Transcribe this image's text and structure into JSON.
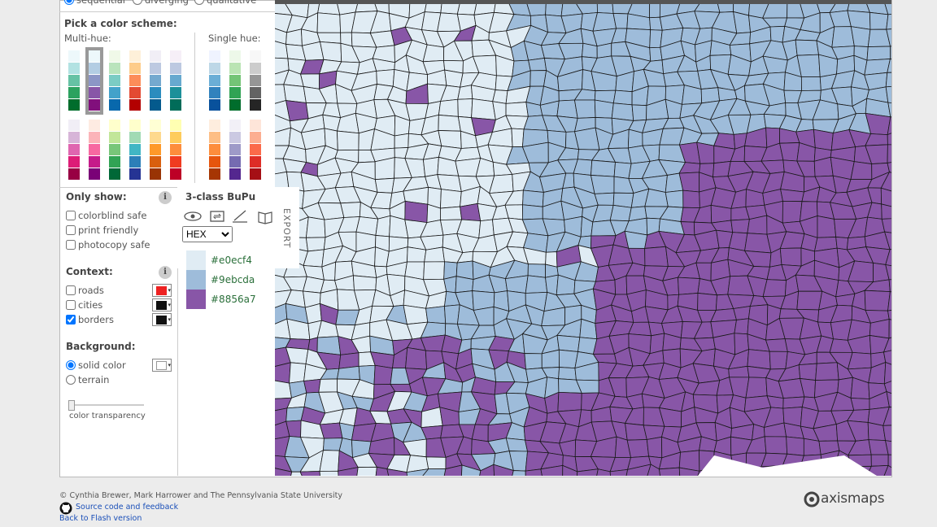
{
  "scheme_type": {
    "options": [
      "sequential",
      "diverging",
      "qualitative"
    ]
  },
  "scheme_picker": {
    "title": "Pick a color scheme:",
    "multi_hue": "Multi-hue:",
    "single_hue": "Single hue:"
  },
  "info_icon": "i",
  "filters": {
    "title": "Only show:",
    "options": [
      "colorblind safe",
      "print friendly",
      "photocopy safe"
    ]
  },
  "context": {
    "title": "Context:",
    "options": [
      "roads",
      "cities",
      "borders"
    ]
  },
  "background": {
    "title": "Background:",
    "options": [
      "solid color",
      "terrain"
    ],
    "slider_label": "color transparency"
  },
  "legend": {
    "title": "3-class BuPu",
    "format": "HEX",
    "export": "EXPORT",
    "colors": [
      "#e0ecf4",
      "#9ebcda",
      "#8856a7"
    ]
  },
  "footer": {
    "copyright": "© Cynthia Brewer, Mark Harrower and The Pennsylvania State University",
    "links": [
      "Source code and feedback",
      "Back to Flash version"
    ],
    "brand": "axismaps"
  }
}
